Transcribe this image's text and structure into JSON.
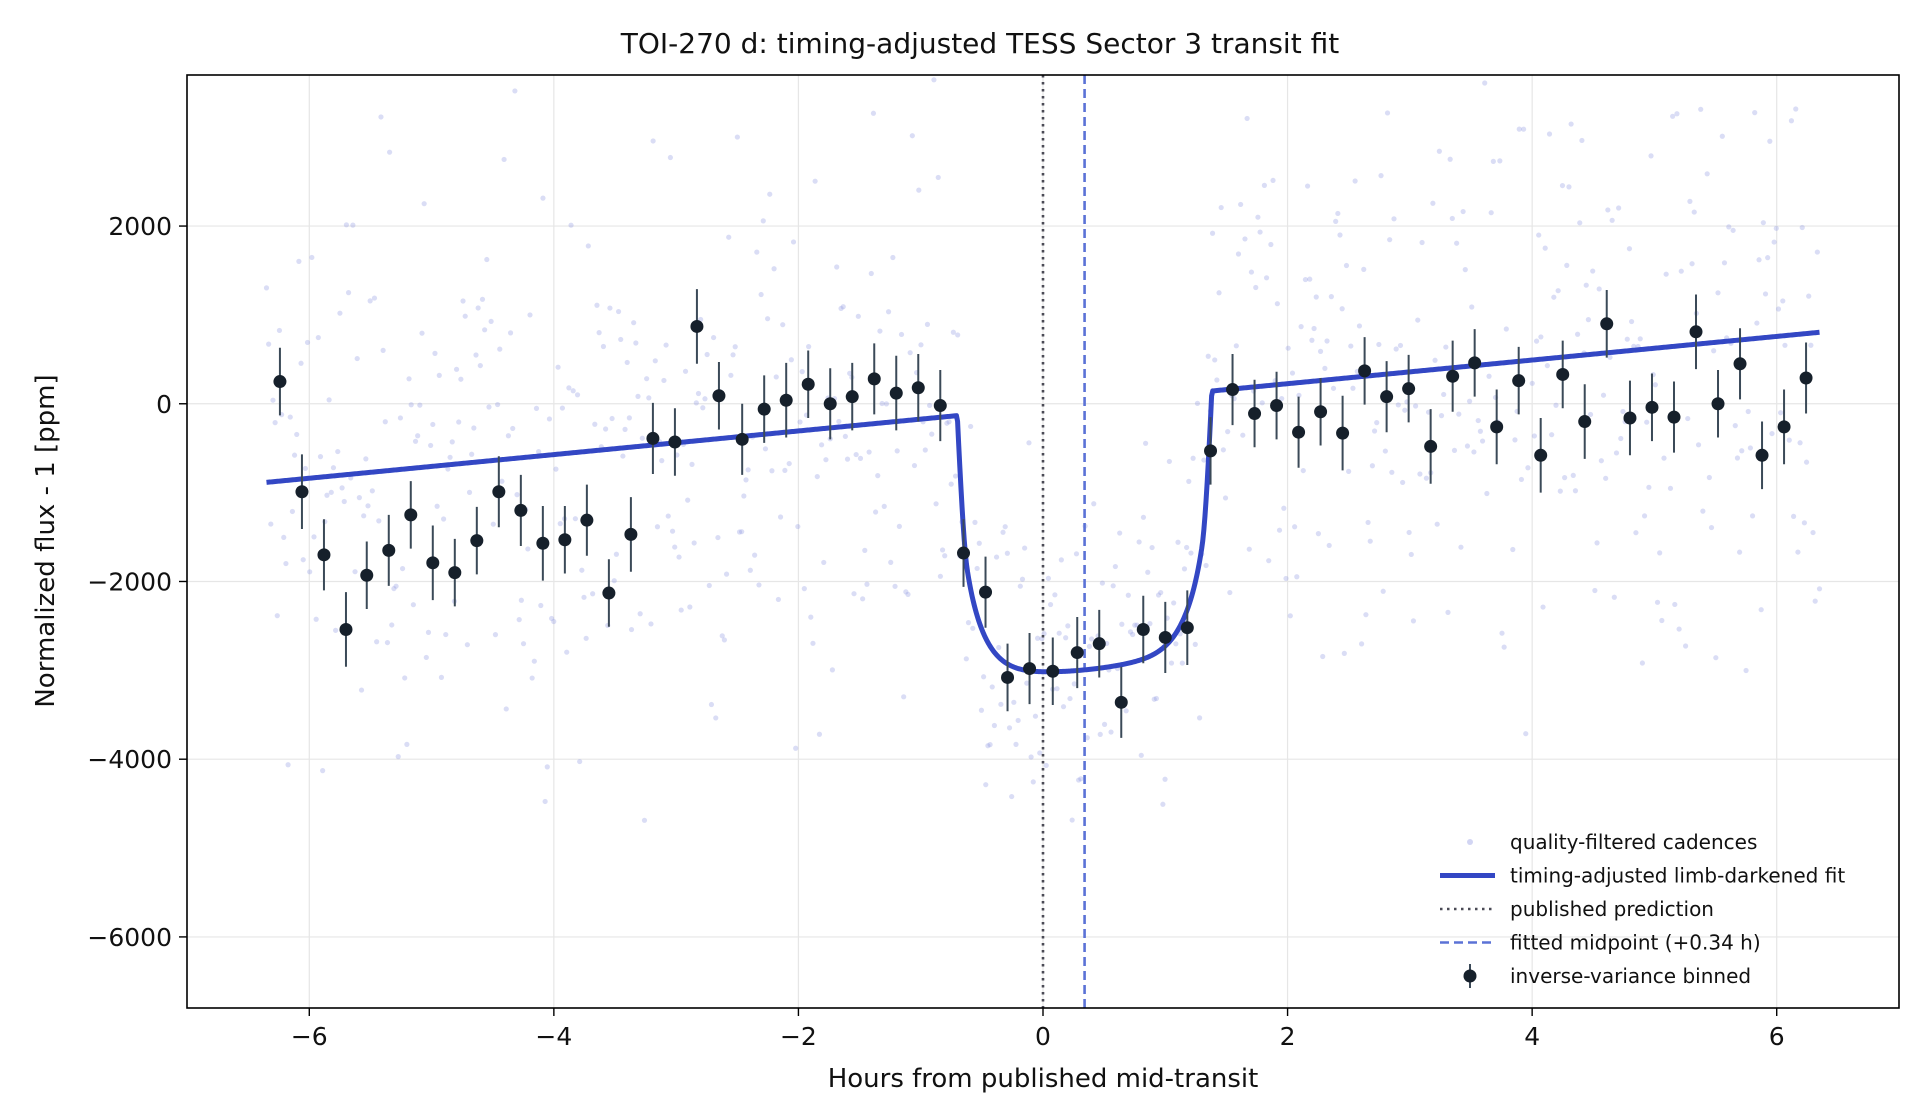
{
  "chart_data": {
    "type": "scatter",
    "title": "TOI-270 d: timing-adjusted TESS Sector 3 transit fit",
    "xlabel": "Hours from published mid-transit",
    "ylabel": "Normalized flux - 1 [ppm]",
    "xlim": [
      -7.0,
      7.0
    ],
    "ylim": [
      -6800,
      3700
    ],
    "xticks": [
      -6,
      -4,
      -2,
      0,
      2,
      4,
      6
    ],
    "xtick_labels": [
      "−6",
      "−4",
      "−2",
      "0",
      "2",
      "4",
      "6"
    ],
    "yticks": [
      -6000,
      -4000,
      -2000,
      0,
      2000
    ],
    "ytick_labels": [
      "−6000",
      "−4000",
      "−2000",
      "0",
      "2000"
    ],
    "grid": true,
    "legend_position": "lower-right",
    "colors": {
      "cadences": "#8e97e0",
      "fit": "#3347c4",
      "prediction": "#4a4a55",
      "fitted_midpoint": "#5b72d6",
      "binned": "#16202b",
      "errorbar": "#3b4a58"
    },
    "legend": [
      {
        "label": "quality-filtered cadences",
        "kind": "dot"
      },
      {
        "label": "timing-adjusted limb-darkened fit",
        "kind": "thick-line"
      },
      {
        "label": "published prediction",
        "kind": "dotted-line"
      },
      {
        "label": "fitted midpoint (+0.34 h)",
        "kind": "dashed-line"
      },
      {
        "label": "inverse-variance binned",
        "kind": "errorbar"
      }
    ],
    "published_prediction_x": 0,
    "fitted_midpoint_x": 0.34,
    "model": {
      "x_range": [
        -6.35,
        6.35
      ],
      "baseline_at_x0": -40,
      "baseline_slope_ppm_per_h": 133,
      "center": 0.34,
      "half_duration_h": 1.04,
      "depth_ppm": 3000,
      "ingress_h": 0.08
    },
    "binned": [
      {
        "x": -6.24,
        "y": 250,
        "err": 380
      },
      {
        "x": -6.06,
        "y": -990,
        "err": 420
      },
      {
        "x": -5.88,
        "y": -1700,
        "err": 400
      },
      {
        "x": -5.7,
        "y": -2540,
        "err": 420
      },
      {
        "x": -5.53,
        "y": -1930,
        "err": 380
      },
      {
        "x": -5.35,
        "y": -1650,
        "err": 400
      },
      {
        "x": -5.17,
        "y": -1250,
        "err": 380
      },
      {
        "x": -4.99,
        "y": -1790,
        "err": 420
      },
      {
        "x": -4.81,
        "y": -1900,
        "err": 380
      },
      {
        "x": -4.63,
        "y": -1540,
        "err": 380
      },
      {
        "x": -4.45,
        "y": -990,
        "err": 400
      },
      {
        "x": -4.27,
        "y": -1200,
        "err": 400
      },
      {
        "x": -4.09,
        "y": -1570,
        "err": 420
      },
      {
        "x": -3.91,
        "y": -1530,
        "err": 380
      },
      {
        "x": -3.73,
        "y": -1310,
        "err": 400
      },
      {
        "x": -3.55,
        "y": -2130,
        "err": 380
      },
      {
        "x": -3.37,
        "y": -1470,
        "err": 420
      },
      {
        "x": -3.19,
        "y": -390,
        "err": 400
      },
      {
        "x": -3.01,
        "y": -430,
        "err": 380
      },
      {
        "x": -2.83,
        "y": 870,
        "err": 420
      },
      {
        "x": -2.65,
        "y": 90,
        "err": 380
      },
      {
        "x": -2.46,
        "y": -400,
        "err": 400
      },
      {
        "x": -2.28,
        "y": -60,
        "err": 380
      },
      {
        "x": -2.1,
        "y": 40,
        "err": 420
      },
      {
        "x": -1.92,
        "y": 220,
        "err": 380
      },
      {
        "x": -1.74,
        "y": 0,
        "err": 400
      },
      {
        "x": -1.56,
        "y": 80,
        "err": 380
      },
      {
        "x": -1.38,
        "y": 280,
        "err": 400
      },
      {
        "x": -1.2,
        "y": 120,
        "err": 420
      },
      {
        "x": -1.02,
        "y": 180,
        "err": 380
      },
      {
        "x": -0.84,
        "y": -20,
        "err": 400
      },
      {
        "x": -0.65,
        "y": -1680,
        "err": 380
      },
      {
        "x": -0.47,
        "y": -2120,
        "err": 400
      },
      {
        "x": -0.29,
        "y": -3080,
        "err": 380
      },
      {
        "x": -0.11,
        "y": -2980,
        "err": 400
      },
      {
        "x": 0.08,
        "y": -3010,
        "err": 380
      },
      {
        "x": 0.28,
        "y": -2800,
        "err": 400
      },
      {
        "x": 0.46,
        "y": -2700,
        "err": 380
      },
      {
        "x": 0.64,
        "y": -3360,
        "err": 400
      },
      {
        "x": 0.82,
        "y": -2540,
        "err": 380
      },
      {
        "x": 1.0,
        "y": -2630,
        "err": 400
      },
      {
        "x": 1.18,
        "y": -2520,
        "err": 420
      },
      {
        "x": 1.37,
        "y": -530,
        "err": 380
      },
      {
        "x": 1.55,
        "y": 160,
        "err": 400
      },
      {
        "x": 1.73,
        "y": -110,
        "err": 380
      },
      {
        "x": 1.91,
        "y": -20,
        "err": 380
      },
      {
        "x": 2.09,
        "y": -320,
        "err": 400
      },
      {
        "x": 2.27,
        "y": -90,
        "err": 380
      },
      {
        "x": 2.45,
        "y": -330,
        "err": 420
      },
      {
        "x": 2.63,
        "y": 370,
        "err": 380
      },
      {
        "x": 2.81,
        "y": 80,
        "err": 400
      },
      {
        "x": 2.99,
        "y": 170,
        "err": 380
      },
      {
        "x": 3.17,
        "y": -480,
        "err": 420
      },
      {
        "x": 3.35,
        "y": 310,
        "err": 400
      },
      {
        "x": 3.53,
        "y": 460,
        "err": 380
      },
      {
        "x": 3.71,
        "y": -260,
        "err": 420
      },
      {
        "x": 3.89,
        "y": 260,
        "err": 380
      },
      {
        "x": 4.07,
        "y": -580,
        "err": 420
      },
      {
        "x": 4.25,
        "y": 330,
        "err": 380
      },
      {
        "x": 4.43,
        "y": -200,
        "err": 420
      },
      {
        "x": 4.61,
        "y": 900,
        "err": 380
      },
      {
        "x": 4.8,
        "y": -160,
        "err": 420
      },
      {
        "x": 4.98,
        "y": -40,
        "err": 380
      },
      {
        "x": 5.16,
        "y": -150,
        "err": 400
      },
      {
        "x": 5.34,
        "y": 810,
        "err": 420
      },
      {
        "x": 5.52,
        "y": 0,
        "err": 380
      },
      {
        "x": 5.7,
        "y": 450,
        "err": 400
      },
      {
        "x": 5.88,
        "y": -580,
        "err": 380
      },
      {
        "x": 6.06,
        "y": -260,
        "err": 420
      },
      {
        "x": 6.24,
        "y": 290,
        "err": 400
      }
    ]
  }
}
